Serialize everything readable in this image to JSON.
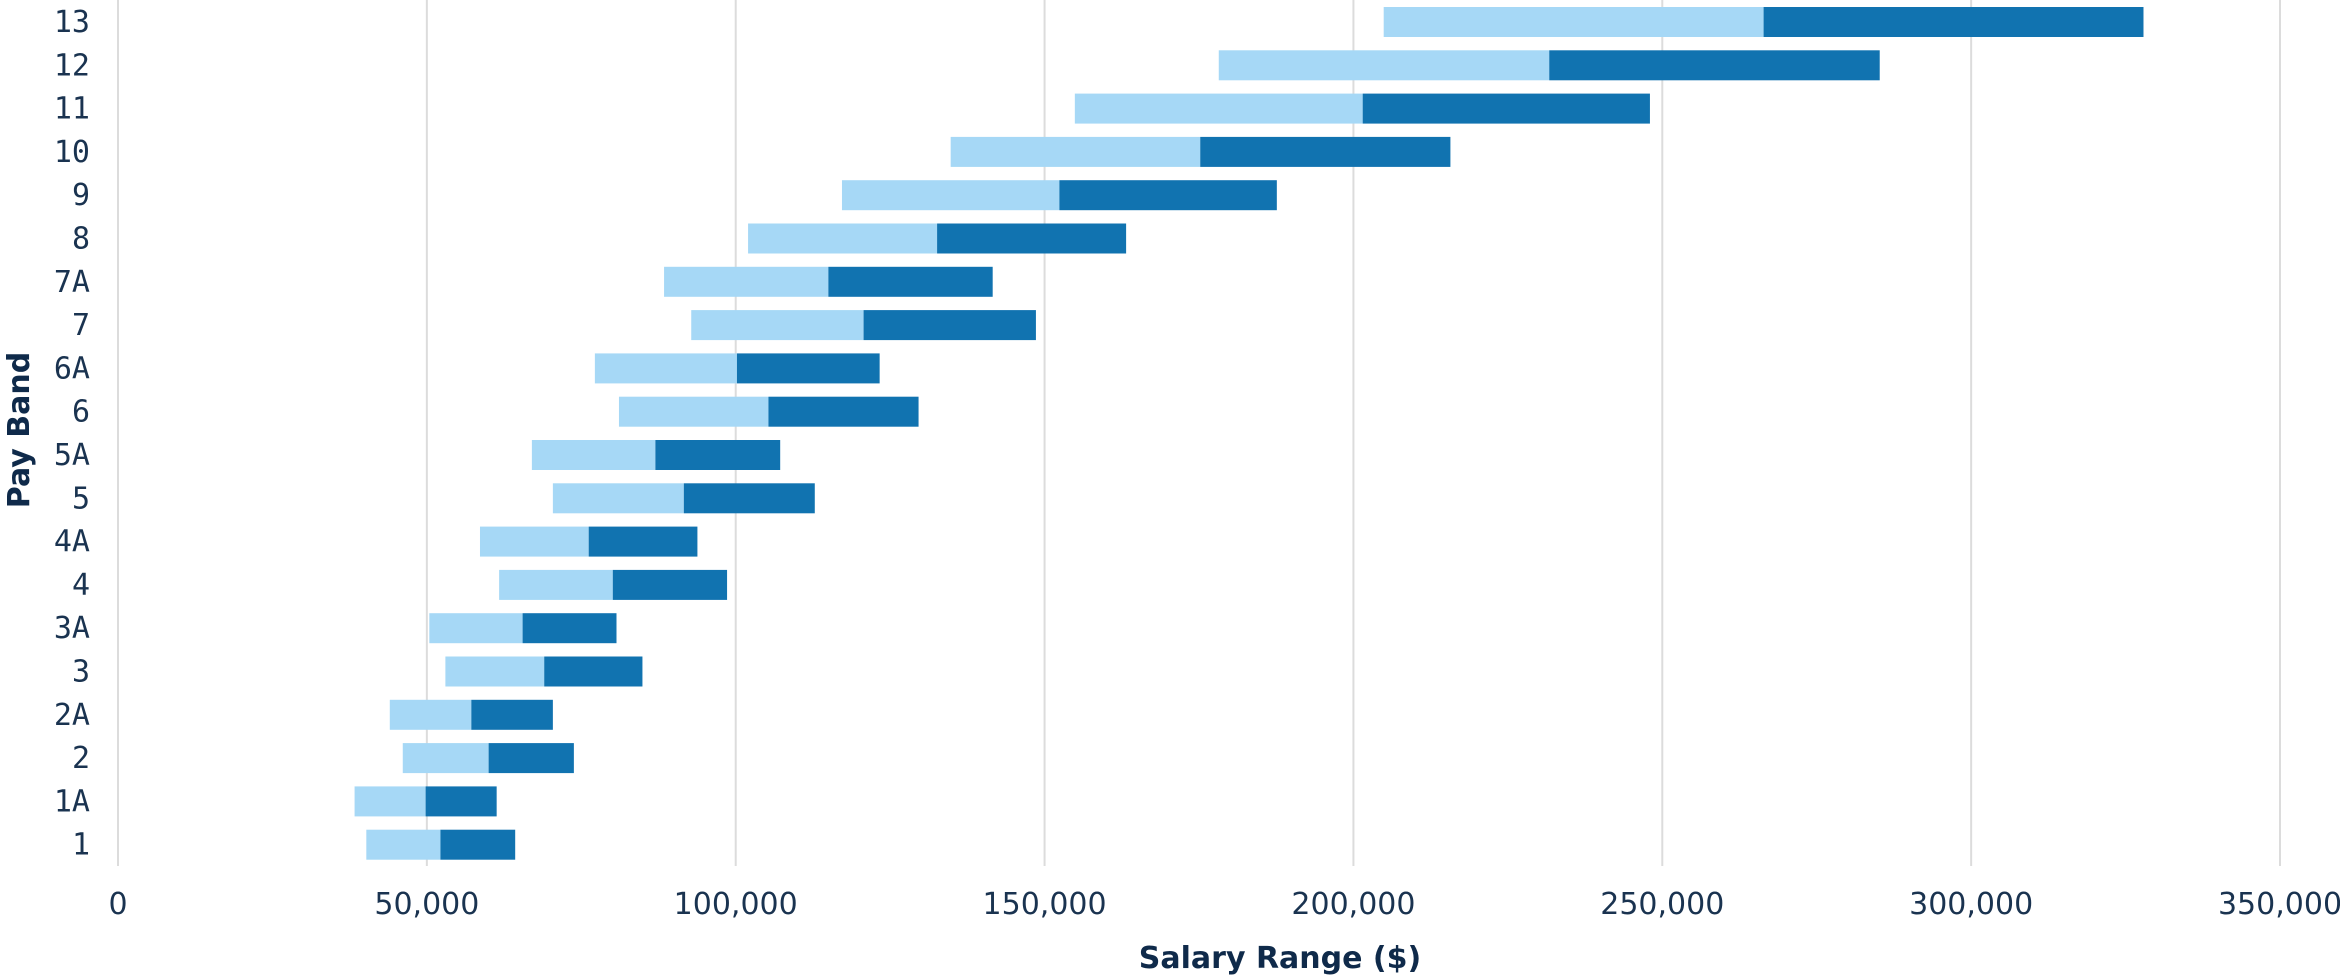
{
  "chart_data": {
    "type": "bar",
    "orientation": "horizontal",
    "stacked": true,
    "title": "",
    "xlabel": "Salary Range ($)",
    "ylabel": "Pay Band",
    "xlim": [
      0,
      350000
    ],
    "x_ticks": [
      0,
      50000,
      100000,
      150000,
      200000,
      250000,
      300000,
      350000
    ],
    "x_tick_labels": [
      "0",
      "50,000",
      "100,000",
      "150,000",
      "200,000",
      "250,000",
      "300,000",
      "350,000"
    ],
    "grid": "vertical",
    "legend": "none",
    "categories": [
      "1",
      "1A",
      "2",
      "2A",
      "3",
      "3A",
      "4",
      "4A",
      "5",
      "5A",
      "6",
      "6A",
      "7",
      "7A",
      "8",
      "9",
      "10",
      "11",
      "12",
      "13"
    ],
    "min": [
      40200,
      38300,
      46100,
      44000,
      53000,
      50400,
      61700,
      58600,
      70400,
      67000,
      81100,
      77200,
      92800,
      88400,
      102000,
      117200,
      134800,
      154900,
      178200,
      204900
    ],
    "mid": [
      52200,
      49800,
      60000,
      57200,
      69000,
      65500,
      80100,
      76200,
      91600,
      87000,
      105300,
      100200,
      120700,
      115000,
      132600,
      152400,
      175200,
      201500,
      231700,
      266400
    ],
    "max": [
      64300,
      61300,
      73800,
      70400,
      84900,
      80700,
      98600,
      93800,
      112800,
      107200,
      129600,
      123300,
      148600,
      141600,
      163200,
      187600,
      215700,
      248000,
      285200,
      327900
    ],
    "colors": {
      "lower": "#a6d8f6",
      "upper": "#1173b0"
    }
  }
}
